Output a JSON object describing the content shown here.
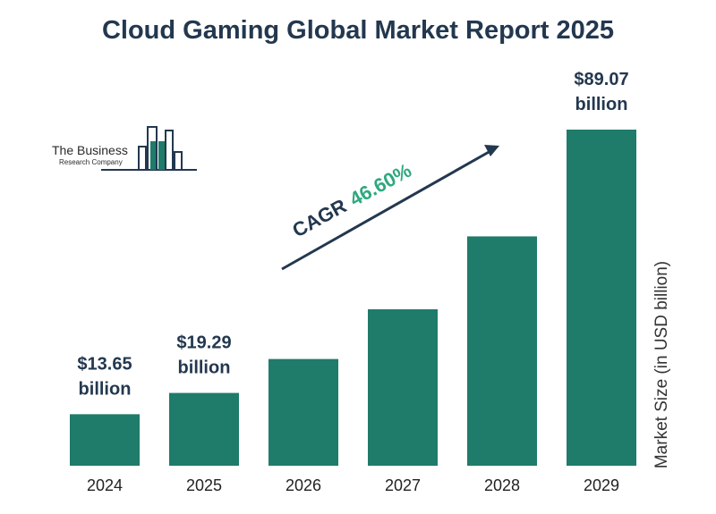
{
  "title": "Cloud Gaming Global Market Report 2025",
  "logo": {
    "line1": "The Business",
    "line2": "Research Company"
  },
  "annotation": {
    "label": "CAGR",
    "value": "46.60%"
  },
  "colors": {
    "bar": "#1f7b6a",
    "title": "#23384f",
    "cagr_value": "#2ea87f",
    "arrow": "#23384f"
  },
  "chart_data": {
    "type": "bar",
    "title": "Cloud Gaming Global Market Report 2025",
    "xlabel": "",
    "ylabel": "Market Size (in USD billion)",
    "categories": [
      "2024",
      "2025",
      "2026",
      "2027",
      "2028",
      "2029"
    ],
    "values": [
      13.65,
      19.29,
      28.28,
      41.46,
      60.78,
      89.07
    ],
    "data_labels": [
      {
        "index": 0,
        "line1": "$13.65",
        "line2": "billion"
      },
      {
        "index": 1,
        "line1": "$19.29",
        "line2": "billion"
      },
      {
        "index": 5,
        "line1": "$89.07",
        "line2": "billion"
      }
    ],
    "ylim": [
      0,
      100
    ],
    "grid": false,
    "axes_visible": false
  }
}
